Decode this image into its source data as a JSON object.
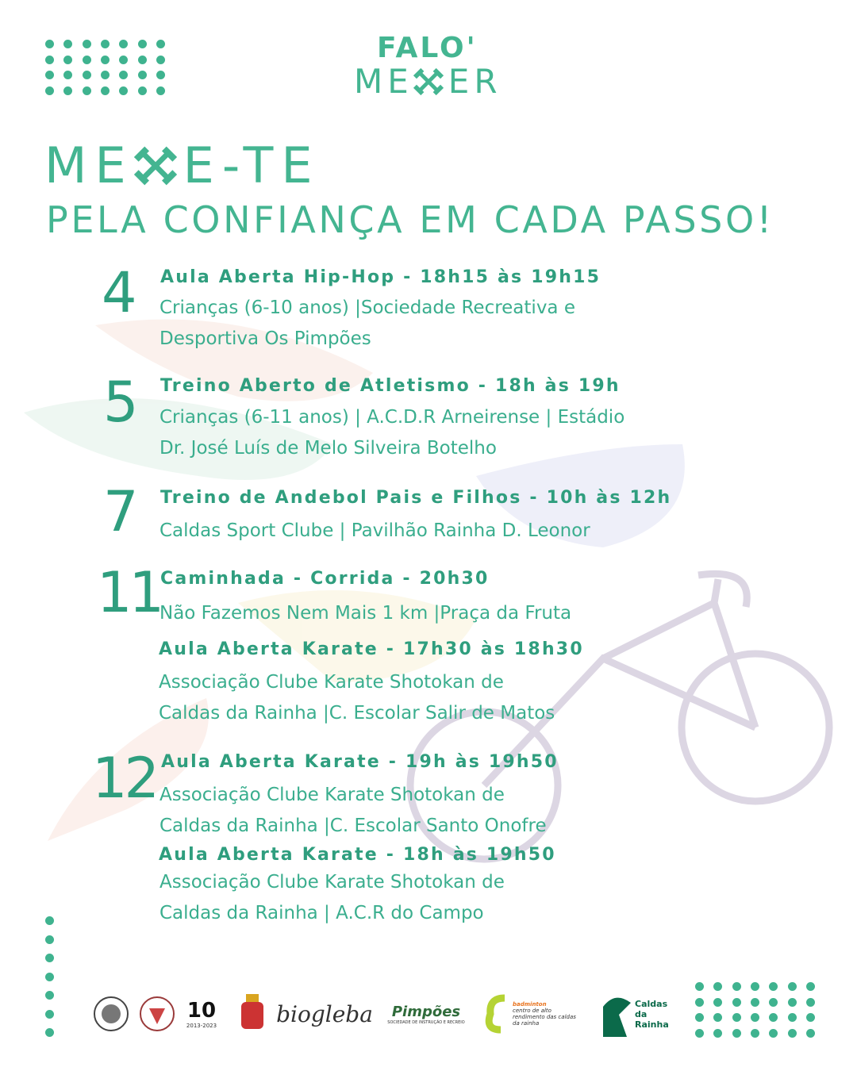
{
  "brand": {
    "line1": "FALO'",
    "line2_left": "ME",
    "line2_right": "ER",
    "icon": "crossed-dumbbells-icon"
  },
  "headline": {
    "line1_left": "ME",
    "line1_right": "E-TE",
    "line2": "PELA CONFIANÇA EM CADA PASSO!"
  },
  "events": [
    {
      "day": "4",
      "items": [
        {
          "title": "Aula Aberta Hip-Hop - 18h15 às 19h15",
          "lines": [
            "Crianças (6-10 anos) |Sociedade Recreativa e",
            "Desportiva  Os Pimpões"
          ]
        }
      ]
    },
    {
      "day": "5",
      "items": [
        {
          "title": "Treino Aberto de Atletismo - 18h às 19h",
          "lines": [
            "Crianças (6-11 anos) | A.C.D.R Arneirense | Estádio",
            "Dr. José Luís de Melo Silveira Botelho"
          ]
        }
      ]
    },
    {
      "day": "7",
      "items": [
        {
          "title": "Treino de Andebol Pais e Filhos - 10h às 12h",
          "lines": [
            "Caldas Sport Clube | Pavilhão Rainha D. Leonor"
          ]
        }
      ]
    },
    {
      "day": "11",
      "items": [
        {
          "title": "Caminhada - Corrida - 20h30",
          "lines": [
            "Não Fazemos Nem Mais 1 km |Praça da Fruta"
          ]
        },
        {
          "title": "Aula Aberta Karate - 17h30 às 18h30",
          "lines": [
            "Associação Clube Karate Shotokan de",
            "Caldas da Rainha |C. Escolar Salir de Matos"
          ]
        }
      ]
    },
    {
      "day": "12",
      "items": [
        {
          "title": "Aula Aberta Karate - 19h às 19h50",
          "lines": [
            "Associação Clube Karate Shotokan de",
            "Caldas da Rainha |C. Escolar Santo Onofre"
          ]
        },
        {
          "title": "Aula Aberta Karate - 18h às 19h50",
          "lines": [
            "Associação Clube Karate Shotokan de",
            "Caldas da Rainha | A.C.R do Campo"
          ]
        }
      ]
    }
  ],
  "sponsors": {
    "biogleba": "biogleba",
    "pimpoes": "Pimpões",
    "pimpoes_sub": "SOCIEDADE DE INSTRUÇÃO E RECREIO",
    "badminton_top": "badminton",
    "badminton": "centro de alto rendimento das caldas da rainha",
    "caldas": "Caldas da Rainha",
    "anniv": "10",
    "anniv_years": "2013-2023"
  },
  "colors": {
    "accent": "#3fb38f",
    "text": "#2f9e7e",
    "cyclist": "#dcd6e3"
  }
}
